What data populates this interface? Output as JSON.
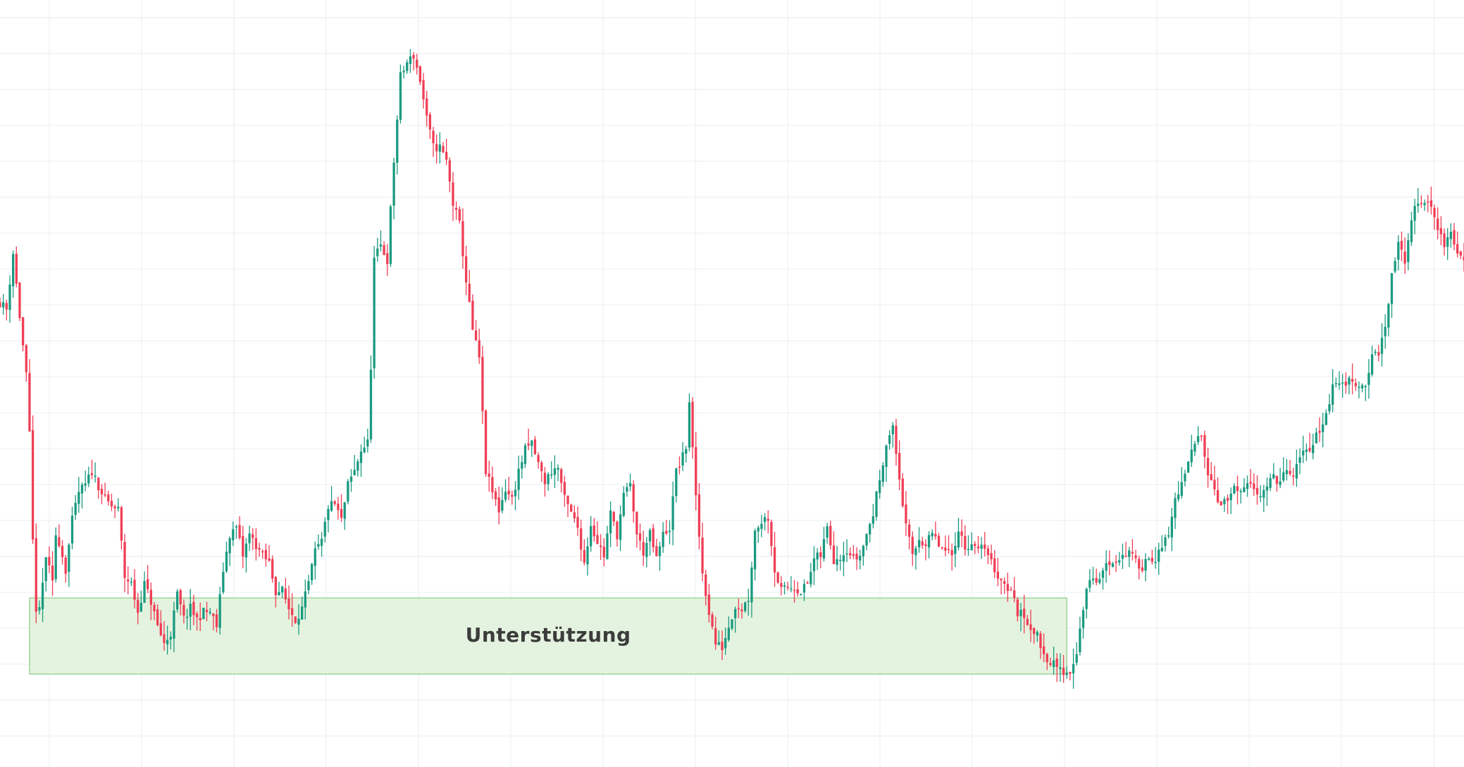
{
  "chart_data": {
    "type": "candlestick",
    "title": "",
    "xlabel": "",
    "ylabel": "",
    "ylim": [
      0,
      1089
    ],
    "grid": true,
    "colors": {
      "up": "#1a9a80",
      "down": "#ef3e55",
      "zone_fill": "#e4f3df",
      "zone_border": "#8fcf8a",
      "grid": "#eef0f3"
    },
    "support_zone": {
      "label": "Unterstützung",
      "x_start": 9,
      "x_end": 325,
      "low": 132,
      "high": 240
    },
    "close_path": [
      [
        0,
        660
      ],
      [
        2,
        650
      ],
      [
        4,
        730
      ],
      [
        6,
        640
      ],
      [
        8,
        555
      ],
      [
        9,
        470
      ],
      [
        10,
        320
      ],
      [
        11,
        225
      ],
      [
        12,
        220
      ],
      [
        14,
        300
      ],
      [
        16,
        260
      ],
      [
        17,
        330
      ],
      [
        18,
        320
      ],
      [
        20,
        280
      ],
      [
        22,
        350
      ],
      [
        24,
        390
      ],
      [
        26,
        400
      ],
      [
        28,
        420
      ],
      [
        30,
        400
      ],
      [
        32,
        380
      ],
      [
        34,
        370
      ],
      [
        36,
        365
      ],
      [
        38,
        270
      ],
      [
        40,
        260
      ],
      [
        42,
        220
      ],
      [
        44,
        260
      ],
      [
        46,
        235
      ],
      [
        48,
        200
      ],
      [
        50,
        175
      ],
      [
        52,
        190
      ],
      [
        54,
        245
      ],
      [
        56,
        210
      ],
      [
        58,
        225
      ],
      [
        60,
        210
      ],
      [
        62,
        220
      ],
      [
        64,
        220
      ],
      [
        66,
        200
      ],
      [
        68,
        280
      ],
      [
        70,
        330
      ],
      [
        72,
        340
      ],
      [
        74,
        300
      ],
      [
        76,
        330
      ],
      [
        78,
        315
      ],
      [
        80,
        300
      ],
      [
        82,
        290
      ],
      [
        84,
        250
      ],
      [
        86,
        250
      ],
      [
        88,
        225
      ],
      [
        90,
        210
      ],
      [
        92,
        225
      ],
      [
        94,
        260
      ],
      [
        96,
        305
      ],
      [
        98,
        320
      ],
      [
        100,
        370
      ],
      [
        102,
        373
      ],
      [
        104,
        350
      ],
      [
        106,
        400
      ],
      [
        108,
        420
      ],
      [
        110,
        450
      ],
      [
        112,
        460
      ],
      [
        113,
        570
      ],
      [
        114,
        720
      ],
      [
        116,
        740
      ],
      [
        118,
        720
      ],
      [
        120,
        860
      ],
      [
        122,
        980
      ],
      [
        124,
        1000
      ],
      [
        126,
        1010
      ],
      [
        128,
        975
      ],
      [
        130,
        920
      ],
      [
        132,
        880
      ],
      [
        134,
        880
      ],
      [
        136,
        860
      ],
      [
        138,
        800
      ],
      [
        140,
        770
      ],
      [
        142,
        690
      ],
      [
        144,
        620
      ],
      [
        146,
        580
      ],
      [
        148,
        420
      ],
      [
        150,
        390
      ],
      [
        152,
        365
      ],
      [
        154,
        395
      ],
      [
        156,
        380
      ],
      [
        158,
        420
      ],
      [
        160,
        450
      ],
      [
        162,
        460
      ],
      [
        164,
        430
      ],
      [
        166,
        405
      ],
      [
        168,
        420
      ],
      [
        170,
        425
      ],
      [
        172,
        380
      ],
      [
        174,
        360
      ],
      [
        176,
        340
      ],
      [
        178,
        290
      ],
      [
        180,
        345
      ],
      [
        182,
        320
      ],
      [
        184,
        300
      ],
      [
        186,
        360
      ],
      [
        188,
        330
      ],
      [
        190,
        385
      ],
      [
        192,
        400
      ],
      [
        194,
        330
      ],
      [
        196,
        305
      ],
      [
        198,
        330
      ],
      [
        200,
        295
      ],
      [
        202,
        330
      ],
      [
        204,
        340
      ],
      [
        206,
        420
      ],
      [
        208,
        440
      ],
      [
        209,
        455
      ],
      [
        210,
        520
      ],
      [
        212,
        380
      ],
      [
        214,
        275
      ],
      [
        216,
        220
      ],
      [
        218,
        175
      ],
      [
        220,
        170
      ],
      [
        222,
        200
      ],
      [
        224,
        230
      ],
      [
        226,
        225
      ],
      [
        228,
        240
      ],
      [
        230,
        335
      ],
      [
        232,
        350
      ],
      [
        234,
        355
      ],
      [
        236,
        280
      ],
      [
        238,
        250
      ],
      [
        240,
        255
      ],
      [
        242,
        255
      ],
      [
        244,
        250
      ],
      [
        246,
        260
      ],
      [
        248,
        295
      ],
      [
        250,
        300
      ],
      [
        252,
        340
      ],
      [
        254,
        295
      ],
      [
        256,
        300
      ],
      [
        258,
        310
      ],
      [
        260,
        295
      ],
      [
        262,
        300
      ],
      [
        264,
        330
      ],
      [
        266,
        360
      ],
      [
        268,
        410
      ],
      [
        270,
        460
      ],
      [
        272,
        480
      ],
      [
        274,
        410
      ],
      [
        276,
        340
      ],
      [
        278,
        300
      ],
      [
        280,
        325
      ],
      [
        282,
        315
      ],
      [
        284,
        330
      ],
      [
        286,
        315
      ],
      [
        288,
        305
      ],
      [
        290,
        300
      ],
      [
        292,
        340
      ],
      [
        294,
        310
      ],
      [
        296,
        320
      ],
      [
        298,
        305
      ],
      [
        300,
        315
      ],
      [
        302,
        290
      ],
      [
        304,
        272
      ],
      [
        306,
        260
      ],
      [
        308,
        250
      ],
      [
        310,
        220
      ],
      [
        312,
        214
      ],
      [
        314,
        200
      ],
      [
        316,
        185
      ],
      [
        318,
        160
      ],
      [
        320,
        150
      ],
      [
        322,
        140
      ],
      [
        324,
        135
      ],
      [
        326,
        135
      ],
      [
        328,
        165
      ],
      [
        330,
        225
      ],
      [
        332,
        270
      ],
      [
        334,
        260
      ],
      [
        336,
        280
      ],
      [
        338,
        290
      ],
      [
        340,
        295
      ],
      [
        342,
        300
      ],
      [
        344,
        305
      ],
      [
        346,
        290
      ],
      [
        348,
        285
      ],
      [
        350,
        300
      ],
      [
        352,
        295
      ],
      [
        354,
        310
      ],
      [
        356,
        330
      ],
      [
        358,
        380
      ],
      [
        360,
        400
      ],
      [
        362,
        430
      ],
      [
        364,
        460
      ],
      [
        366,
        475
      ],
      [
        368,
        420
      ],
      [
        370,
        395
      ],
      [
        372,
        370
      ],
      [
        374,
        380
      ],
      [
        376,
        395
      ],
      [
        378,
        385
      ],
      [
        380,
        400
      ],
      [
        382,
        395
      ],
      [
        384,
        390
      ],
      [
        386,
        400
      ],
      [
        388,
        410
      ],
      [
        390,
        405
      ],
      [
        392,
        420
      ],
      [
        394,
        410
      ],
      [
        396,
        440
      ],
      [
        398,
        450
      ],
      [
        400,
        460
      ],
      [
        402,
        480
      ],
      [
        404,
        500
      ],
      [
        406,
        540
      ],
      [
        408,
        545
      ],
      [
        410,
        545
      ],
      [
        412,
        552
      ],
      [
        414,
        540
      ],
      [
        416,
        545
      ],
      [
        418,
        580
      ],
      [
        420,
        590
      ],
      [
        422,
        620
      ],
      [
        424,
        700
      ],
      [
        426,
        740
      ],
      [
        428,
        720
      ],
      [
        430,
        780
      ],
      [
        432,
        800
      ],
      [
        434,
        805
      ],
      [
        436,
        792
      ],
      [
        438,
        768
      ],
      [
        440,
        740
      ],
      [
        442,
        760
      ],
      [
        444,
        730
      ],
      [
        446,
        720
      ]
    ]
  }
}
